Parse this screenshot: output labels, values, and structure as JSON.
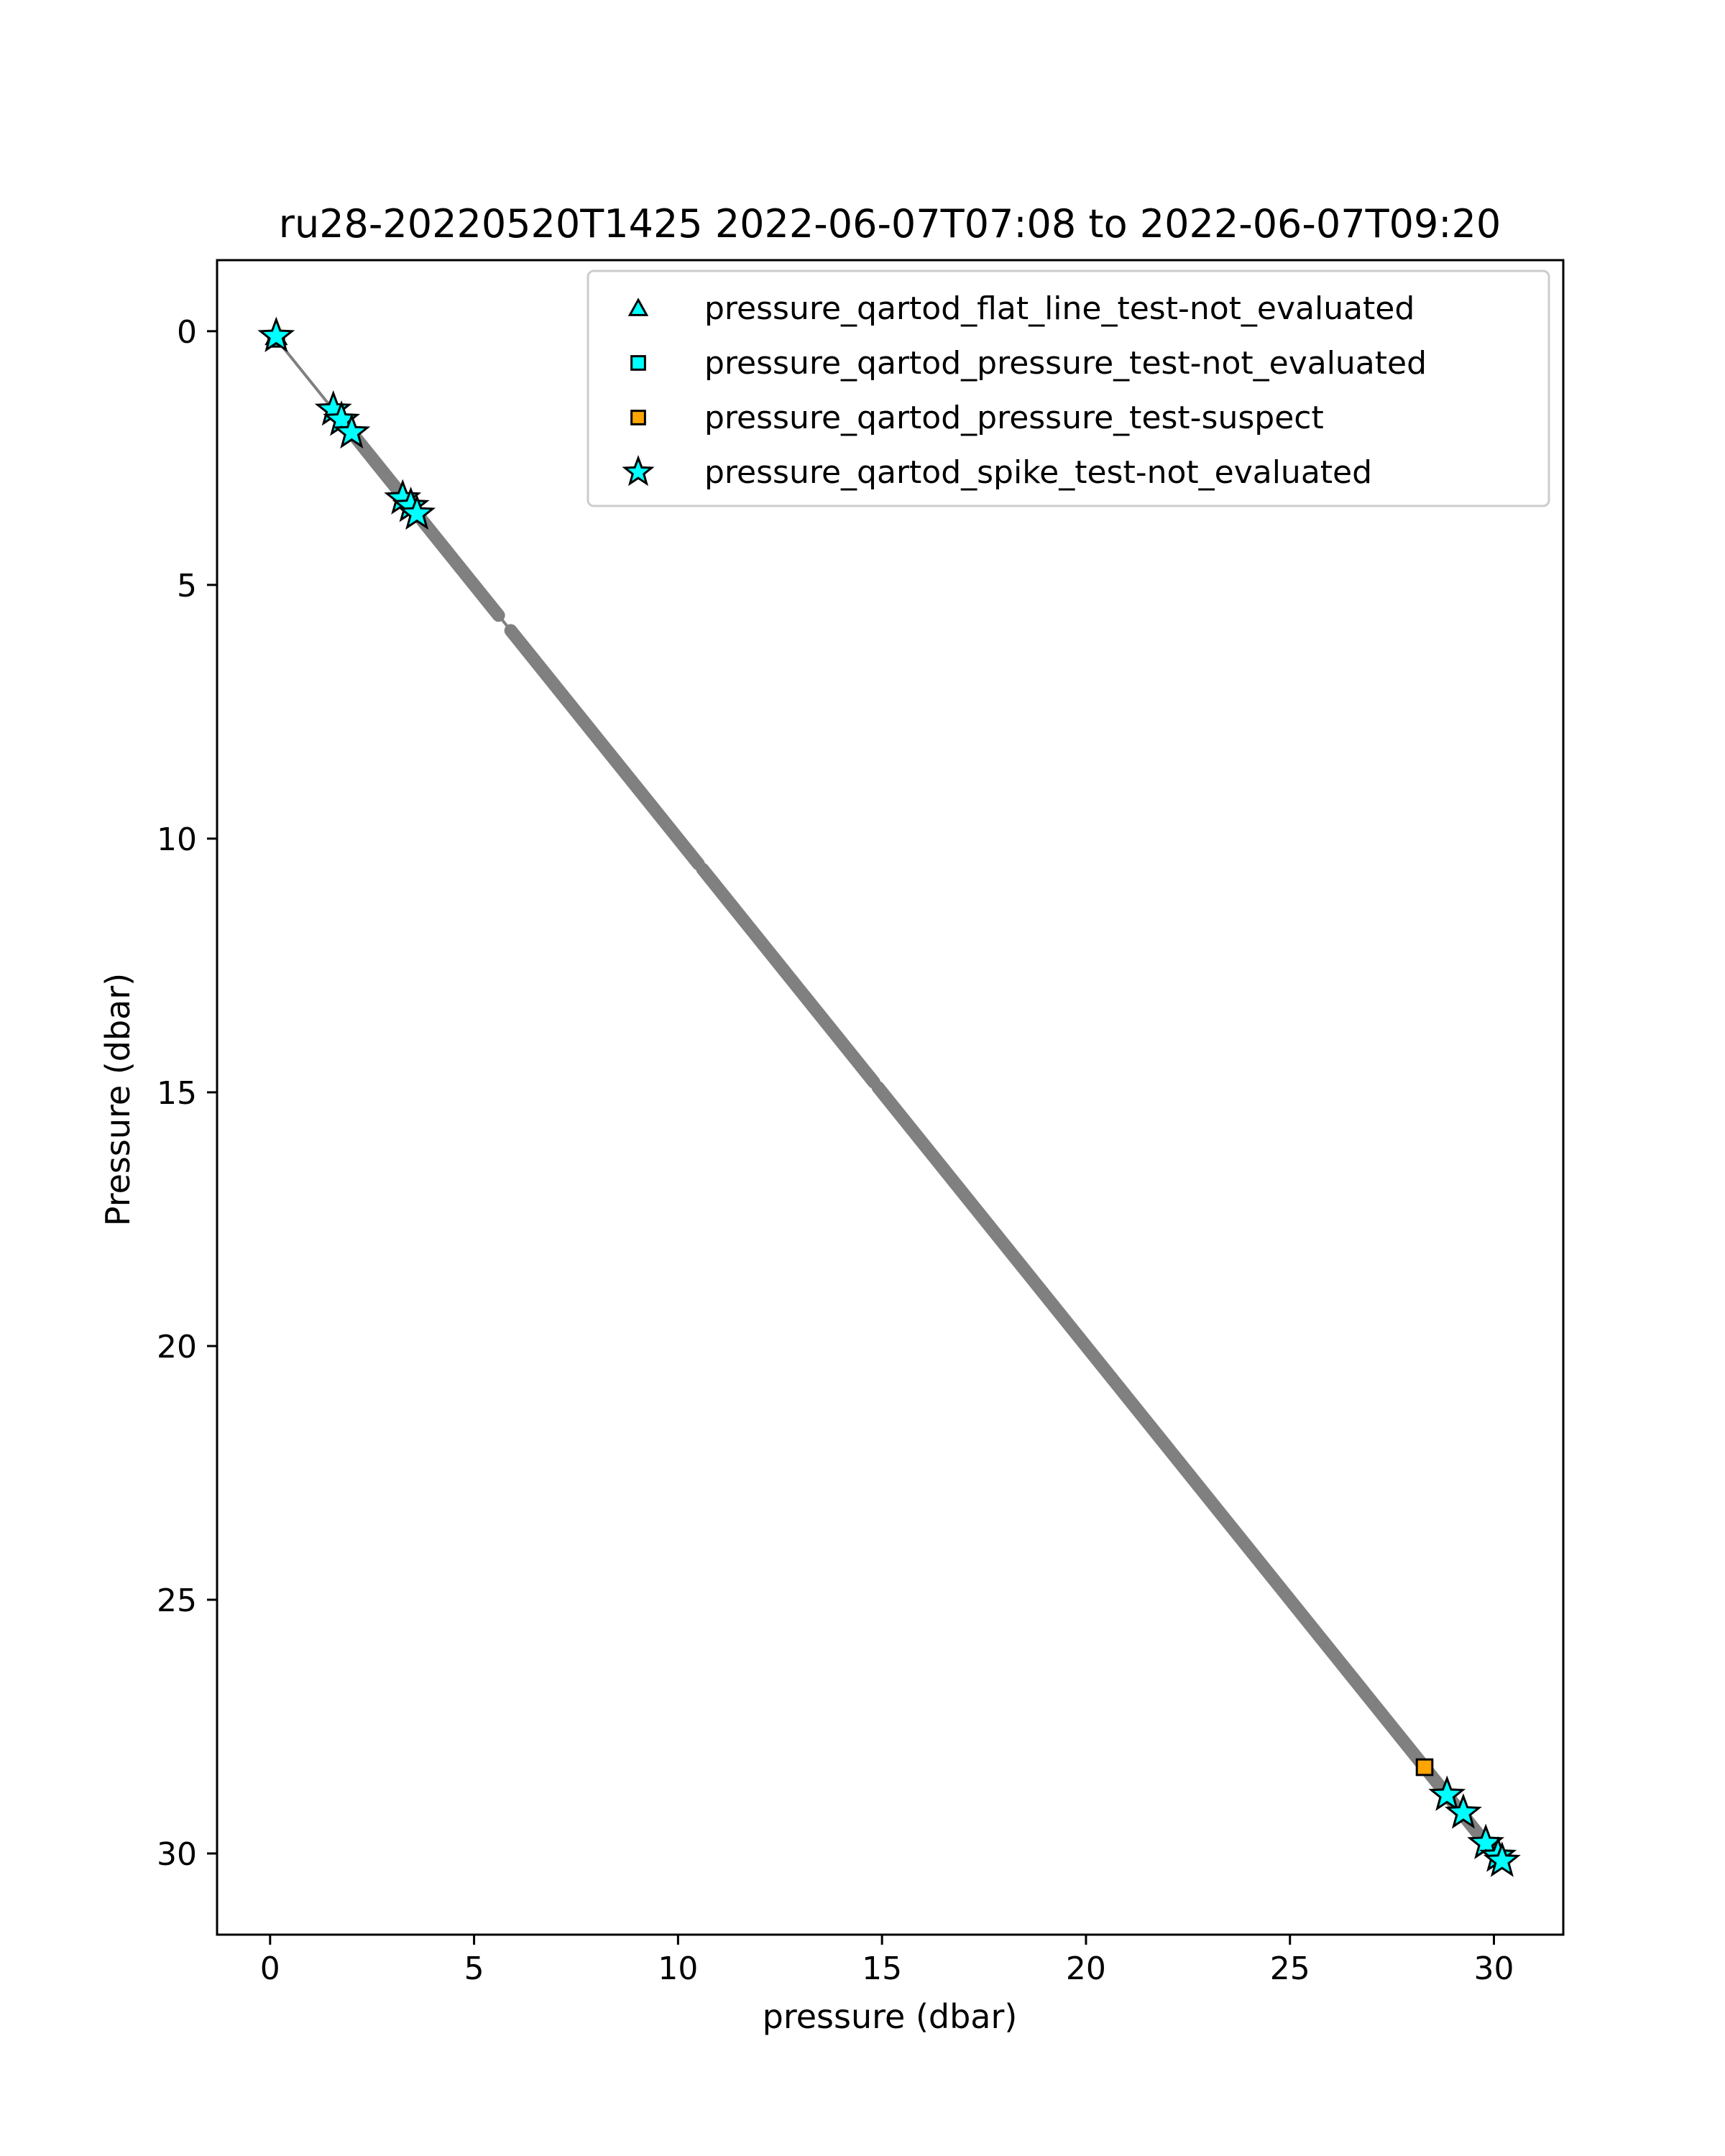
{
  "chart_data": {
    "type": "scatter",
    "title": "ru28-20220520T1425 2022-06-07T07:08 to 2022-06-07T09:20",
    "xlabel": "pressure (dbar)",
    "ylabel": "Pressure (dbar)",
    "xlim": [
      -1.3,
      31.7
    ],
    "ylim": [
      31.6,
      -1.4
    ],
    "y_inverted": true,
    "grid": false,
    "legend_position": "top-right",
    "xticks": [
      0,
      5,
      10,
      15,
      20,
      25,
      30
    ],
    "yticks": [
      0,
      5,
      10,
      15,
      20,
      25,
      30
    ],
    "xtick_labels": [
      "0",
      "5",
      "10",
      "15",
      "20",
      "25",
      "30"
    ],
    "ytick_labels": [
      "0",
      "5",
      "10",
      "15",
      "20",
      "25",
      "30"
    ],
    "profile": {
      "color": "#808080",
      "points": [
        [
          0.15,
          0.15
        ],
        [
          30.2,
          30.2
        ]
      ],
      "segments": [
        [
          1.5,
          5.6
        ],
        [
          5.9,
          10.5
        ],
        [
          10.6,
          14.8
        ],
        [
          14.9,
          30.1
        ]
      ]
    },
    "series": [
      {
        "name": "pressure_qartod_flat_line_test-not_evaluated",
        "marker": "triangle",
        "color": "#00ffff",
        "points": [
          [
            0.15,
            0.1
          ]
        ]
      },
      {
        "name": "pressure_qartod_pressure_test-not_evaluated",
        "marker": "square",
        "color": "#00ffff",
        "points": [
          [
            0.15,
            0.15
          ]
        ]
      },
      {
        "name": "pressure_qartod_pressure_test-suspect",
        "marker": "square",
        "color": "#ffa500",
        "points": [
          [
            28.3,
            28.3
          ]
        ]
      },
      {
        "name": "pressure_qartod_spike_test-not_evaluated",
        "marker": "star",
        "color": "#00ffff",
        "points": [
          [
            0.15,
            0.1
          ],
          [
            1.55,
            1.55
          ],
          [
            1.75,
            1.75
          ],
          [
            2.0,
            2.0
          ],
          [
            3.25,
            3.3
          ],
          [
            3.45,
            3.45
          ],
          [
            3.6,
            3.6
          ],
          [
            28.85,
            28.85
          ],
          [
            29.25,
            29.2
          ],
          [
            29.8,
            29.8
          ],
          [
            30.1,
            30.05
          ],
          [
            30.2,
            30.15
          ]
        ]
      }
    ]
  }
}
